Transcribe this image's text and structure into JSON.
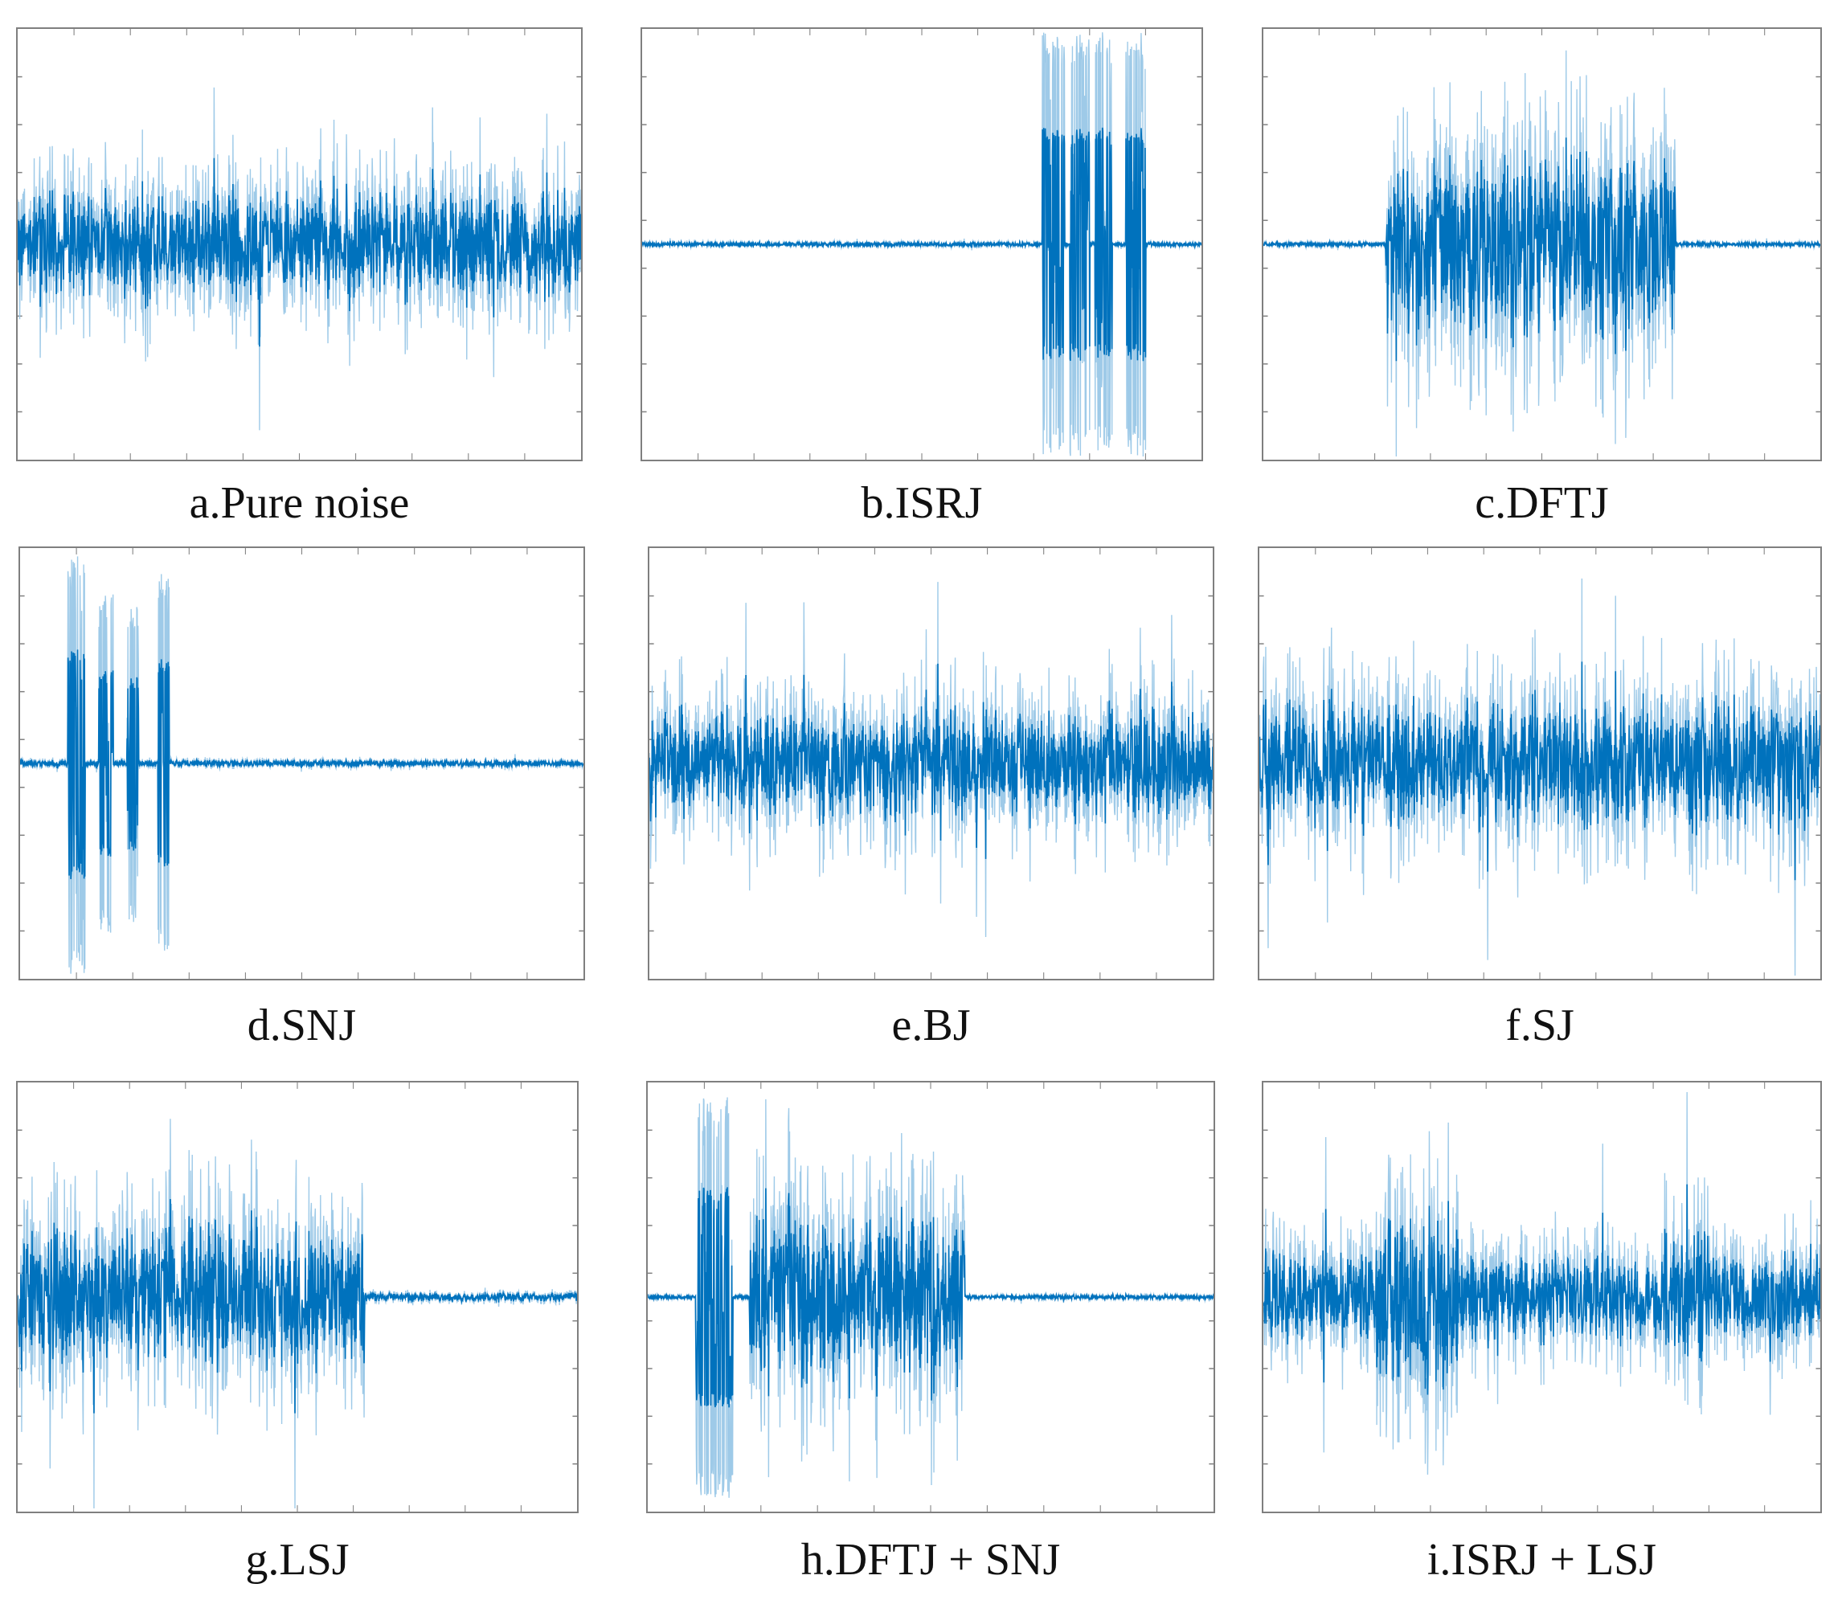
{
  "colors": {
    "signal_dark": "#0072BD",
    "signal_light": "#9ecae8",
    "axes": "#7f7f7f",
    "background": "#ffffff"
  },
  "chart_data": [
    {
      "type": "line",
      "label": "a.Pure noise",
      "segments": [
        [
          0.0,
          1.0,
          0.55
        ]
      ],
      "bursts": [],
      "baseline": 0.0,
      "grid": false
    },
    {
      "type": "line",
      "label": "b.ISRJ",
      "segments": [],
      "bursts": [
        [
          0.715,
          0.755,
          1.0
        ],
        [
          0.765,
          0.8,
          1.0
        ],
        [
          0.81,
          0.84,
          1.0
        ],
        [
          0.865,
          0.9,
          1.0
        ]
      ],
      "baseline": 0.02,
      "grid": false
    },
    {
      "type": "line",
      "label": "c.DFTJ",
      "segments": [
        [
          0.22,
          0.74,
          0.95
        ]
      ],
      "bursts": [],
      "baseline": 0.02,
      "grid": false
    },
    {
      "type": "line",
      "label": "d.SNJ",
      "segments": [],
      "bursts": [
        [
          0.085,
          0.115,
          1.0
        ],
        [
          0.14,
          0.165,
          0.8
        ],
        [
          0.19,
          0.21,
          0.75
        ],
        [
          0.245,
          0.265,
          0.9
        ]
      ],
      "baseline": 0.03,
      "grid": false
    },
    {
      "type": "line",
      "label": "e.BJ",
      "segments": [
        [
          0.0,
          1.0,
          0.55
        ]
      ],
      "bursts": [],
      "baseline": 0.0,
      "grid": false
    },
    {
      "type": "line",
      "label": "f.SJ",
      "segments": [
        [
          0.0,
          1.0,
          0.65
        ]
      ],
      "bursts": [],
      "baseline": 0.0,
      "grid": false
    },
    {
      "type": "line",
      "label": "g.LSJ",
      "segments": [
        [
          0.0,
          0.62,
          0.7
        ]
      ],
      "bursts": [],
      "baseline": 0.04,
      "grid": false
    },
    {
      "type": "line",
      "label": "h.DFTJ + SNJ",
      "segments": [
        [
          0.18,
          0.56,
          0.9
        ]
      ],
      "bursts": [
        [
          0.085,
          0.15,
          0.95
        ]
      ],
      "baseline": 0.02,
      "grid": false
    },
    {
      "type": "line",
      "label": "i.ISRJ + LSJ",
      "segments": [
        [
          0.0,
          1.0,
          0.45
        ],
        [
          0.2,
          0.35,
          0.9
        ],
        [
          0.72,
          0.8,
          0.65
        ]
      ],
      "bursts": [],
      "baseline": 0.0,
      "grid": false
    }
  ]
}
